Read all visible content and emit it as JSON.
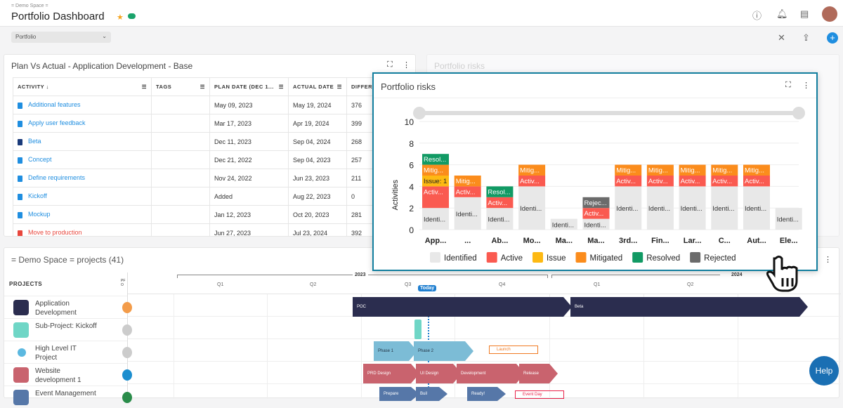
{
  "header": {
    "breadcrumb": "= Demo Space =",
    "title": "Portfolio Dashboard"
  },
  "toolbar": {
    "select_value": "Portfolio"
  },
  "plan_panel": {
    "title": "Plan Vs Actual - Application Development - Base",
    "columns": [
      "ACTIVITY ↓",
      "TAGS",
      "PLAN DATE (DEC 1...",
      "ACTUAL DATE",
      "DIFFERE"
    ],
    "rows": [
      {
        "activity": "Additional features",
        "tags": "",
        "plan": "May 09, 2023",
        "actual": "May 19, 2024",
        "diff": "376",
        "icon": "clipboard"
      },
      {
        "activity": "Apply user feedback",
        "tags": "",
        "plan": "Mar 17, 2023",
        "actual": "Apr 19, 2024",
        "diff": "399",
        "icon": "clipboard"
      },
      {
        "activity": "Beta",
        "tags": "",
        "plan": "Dec 11, 2023",
        "actual": "Sep 04, 2024",
        "diff": "268",
        "icon": "flag"
      },
      {
        "activity": "Concept",
        "tags": "",
        "plan": "Dec 21, 2022",
        "actual": "Sep 04, 2023",
        "diff": "257",
        "icon": "clipboard"
      },
      {
        "activity": "Define requirements",
        "tags": "",
        "plan": "Nov 24, 2022",
        "actual": "Jun 23, 2023",
        "diff": "211",
        "icon": "clipboard"
      },
      {
        "activity": "Kickoff",
        "tags": "",
        "plan": "Added",
        "actual": "Aug 22, 2023",
        "diff": "0",
        "icon": "clipboard"
      },
      {
        "activity": "Mockup",
        "tags": "",
        "plan": "Jan 12, 2023",
        "actual": "Oct 20, 2023",
        "diff": "281",
        "icon": "clipboard"
      },
      {
        "activity": "Move to production",
        "tags": "",
        "plan": "Jun 27, 2023",
        "actual": "Jul 23, 2024",
        "diff": "392",
        "icon": "clipboard"
      }
    ]
  },
  "risk_bg_title": "Portfolio risks",
  "chart_data": {
    "type": "bar",
    "stacked": true,
    "title": "Portfolio risks",
    "ylabel": "Activities",
    "ylim": [
      0,
      10
    ],
    "yticks": [
      0,
      2,
      4,
      6,
      8,
      10
    ],
    "grid": true,
    "legend": "bottom",
    "categories": [
      "App...",
      "...",
      "Ab...",
      "Mo...",
      "Ma...",
      "Ma...",
      "3rd...",
      "Fin...",
      "Lar...",
      "C...",
      "Aut...",
      "Ele..."
    ],
    "series": [
      {
        "name": "Identified",
        "color": "#e8e8e8",
        "label": "Identi...",
        "values": [
          2,
          3,
          2,
          4,
          1,
          1,
          4,
          4,
          4,
          4,
          4,
          2
        ]
      },
      {
        "name": "Active",
        "color": "#fa5a50",
        "label": "Activ...",
        "values": [
          2,
          1,
          1,
          1,
          0,
          1,
          1,
          1,
          1,
          1,
          1,
          0
        ]
      },
      {
        "name": "Issue",
        "color": "#fdb913",
        "label": "Issue: 1",
        "values": [
          1,
          0,
          0,
          0,
          0,
          0,
          0,
          0,
          0,
          0,
          0,
          0
        ]
      },
      {
        "name": "Mitigated",
        "color": "#fb8c1c",
        "label": "Mitig...",
        "values": [
          1,
          1,
          0,
          1,
          0,
          0,
          1,
          1,
          1,
          1,
          1,
          0
        ]
      },
      {
        "name": "Resolved",
        "color": "#119a64",
        "label": "Resol...",
        "values": [
          1,
          0,
          1,
          0,
          0,
          0,
          0,
          0,
          0,
          0,
          0,
          0
        ]
      },
      {
        "name": "Rejected",
        "color": "#6b6b6b",
        "label": "Rejec...",
        "values": [
          0,
          0,
          0,
          0,
          0,
          1,
          0,
          0,
          0,
          0,
          0,
          0
        ]
      }
    ]
  },
  "gantt": {
    "title": "= Demo Space = projects (41)",
    "col_header": "PROJECTS",
    "col2": "PF O",
    "year1": "2023",
    "year2": "2024",
    "quarters": [
      "Q1",
      "Q2",
      "Q3",
      "Q4",
      "Q1",
      "Q2"
    ],
    "today": "Today",
    "projects": [
      {
        "name": "Application Development",
        "color": "#2b2d4f"
      },
      {
        "name": "Sub-Project: Kickoff",
        "color": "#6fd6c6"
      },
      {
        "name": "High Level IT Project",
        "color": "#5bb8e0"
      },
      {
        "name": "Website development 1",
        "color": "#c9636e"
      },
      {
        "name": "Event Management",
        "color": "#5677a8"
      }
    ],
    "bars": {
      "poc": "POC",
      "beta": "Beta",
      "phase1": "Phase 1",
      "phase2": "Phase 2",
      "launch": "Launch",
      "prd": "PRD Design",
      "ui": "UI Design",
      "dev": "Development",
      "release": "Release",
      "prepare": "Prepare",
      "build": "Buil",
      "ready": "Ready!",
      "event_day": "Event Day"
    }
  },
  "help": "Help"
}
